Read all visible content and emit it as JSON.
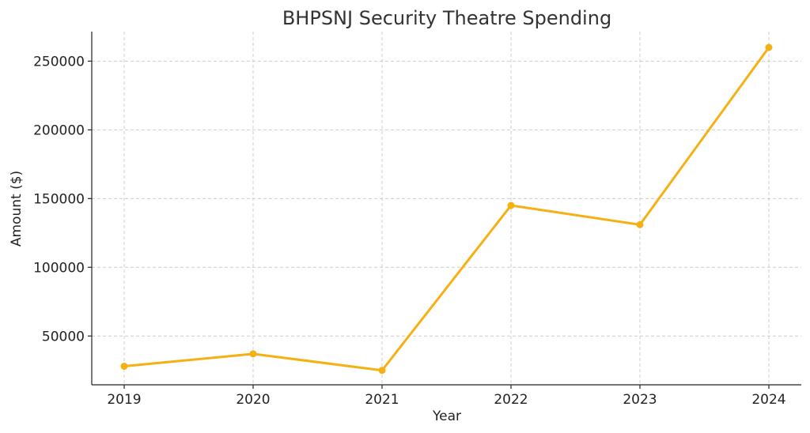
{
  "chart_data": {
    "type": "line",
    "title": "BHPSNJ Security Theatre Spending",
    "xlabel": "Year",
    "ylabel": "Amount ($)",
    "x": [
      "2019",
      "2020",
      "2021",
      "2022",
      "2023",
      "2024"
    ],
    "series": [
      {
        "values": [
          28000,
          37000,
          25000,
          145000,
          131000,
          260000
        ],
        "color": "#F5B014",
        "marker": "circle"
      }
    ],
    "yticks": [
      50000,
      100000,
      150000,
      200000,
      250000
    ],
    "ytick_labels": [
      "50000",
      "100000",
      "150000",
      "200000",
      "250000"
    ],
    "ylim": [
      14500,
      271500
    ],
    "grid": true,
    "legend": "none"
  }
}
